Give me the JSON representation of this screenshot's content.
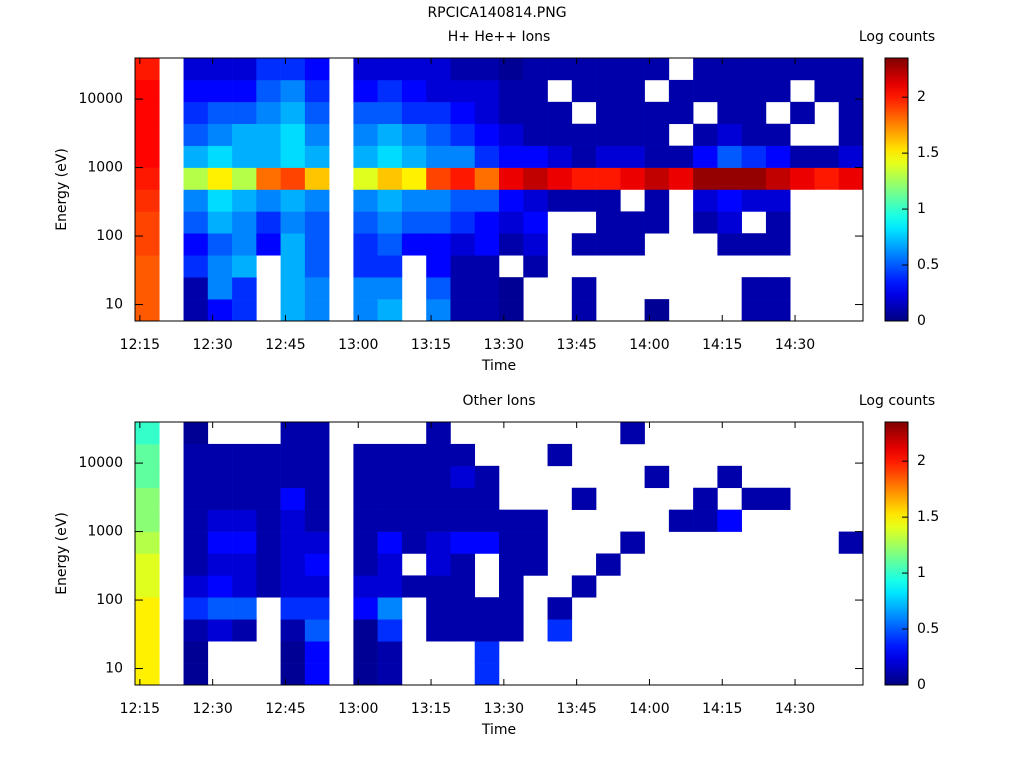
{
  "page_title": "RPCICA140814.PNG",
  "chart_data": [
    {
      "type": "heatmap",
      "title": "H+ He++ Ions",
      "xlabel": "Time",
      "ylabel": "Energy (eV)",
      "colorbar_label": "Log counts",
      "colormap": "jet",
      "log_y": true,
      "x": [
        734,
        739,
        744,
        749,
        754,
        759,
        764,
        769,
        774,
        779,
        784,
        789,
        794,
        799,
        804,
        809,
        814,
        819,
        824,
        829,
        834,
        839,
        844,
        849,
        854,
        859,
        864,
        869,
        874,
        879,
        884
      ],
      "y": [
        5.75,
        12.0,
        25.1,
        52.5,
        110,
        229,
        479,
        1000,
        2089,
        4365,
        9120,
        19055,
        39811
      ],
      "z": [
        [
          1.85,
          1.85,
          1.85,
          1.9,
          1.9,
          1.95,
          2.0,
          2.05,
          2.05,
          2.05,
          2.05,
          2.0
        ],
        [
          null,
          null,
          null,
          null,
          null,
          null,
          null,
          null,
          null,
          null,
          null,
          null
        ],
        [
          0.1,
          0.1,
          0.4,
          0.3,
          0.5,
          0.6,
          1.3,
          0.7,
          0.5,
          0.4,
          0.3,
          0.2
        ],
        [
          0.3,
          0.6,
          0.6,
          0.5,
          0.7,
          0.8,
          1.5,
          0.8,
          0.6,
          0.5,
          0.3,
          0.2
        ],
        [
          0.4,
          0.4,
          0.7,
          0.6,
          0.6,
          0.7,
          1.3,
          0.7,
          0.7,
          0.5,
          0.3,
          0.2
        ],
        [
          null,
          null,
          null,
          0.3,
          0.4,
          0.6,
          1.8,
          0.7,
          0.7,
          0.6,
          0.5,
          0.4
        ],
        [
          0.7,
          0.7,
          0.7,
          0.7,
          0.6,
          0.7,
          1.9,
          0.8,
          0.8,
          0.7,
          0.6,
          0.4
        ],
        [
          0.6,
          0.6,
          0.5,
          0.5,
          0.5,
          0.6,
          1.6,
          0.7,
          0.6,
          0.5,
          0.4,
          0.3
        ],
        [
          null,
          null,
          null,
          null,
          null,
          null,
          null,
          null,
          null,
          null,
          null,
          null
        ],
        [
          0.6,
          0.6,
          0.4,
          0.4,
          0.5,
          0.6,
          1.4,
          0.7,
          0.6,
          0.5,
          0.3,
          0.2
        ],
        [
          0.7,
          0.6,
          0.4,
          0.5,
          0.6,
          0.7,
          1.6,
          0.8,
          0.7,
          0.5,
          0.4,
          0.2
        ],
        [
          null,
          null,
          null,
          0.3,
          0.5,
          0.6,
          1.5,
          0.7,
          0.6,
          0.4,
          0.3,
          0.2
        ],
        [
          0.6,
          0.5,
          0.3,
          0.3,
          0.5,
          0.6,
          1.9,
          0.6,
          0.5,
          0.4,
          0.2,
          0.2
        ],
        [
          0.1,
          0.1,
          0.1,
          0.2,
          0.4,
          0.5,
          2.0,
          0.6,
          0.4,
          0.3,
          0.2,
          0.1
        ],
        [
          0.1,
          0.1,
          0.1,
          0.3,
          0.3,
          0.5,
          1.8,
          0.4,
          0.3,
          0.2,
          0.2,
          0.1
        ],
        [
          0.05,
          0.05,
          null,
          0.1,
          0.2,
          0.3,
          2.1,
          0.3,
          0.2,
          0.1,
          0.1,
          0.05
        ],
        [
          null,
          null,
          0.1,
          0.2,
          0.3,
          0.2,
          2.2,
          0.3,
          0.1,
          0.1,
          0.1,
          0.1
        ],
        [
          null,
          null,
          null,
          null,
          null,
          0.1,
          2.1,
          0.2,
          0.1,
          0.1,
          null,
          0.1
        ],
        [
          0.1,
          0.1,
          null,
          0.1,
          null,
          0.1,
          2.0,
          0.1,
          0.1,
          null,
          0.1,
          0.1
        ],
        [
          null,
          null,
          null,
          0.1,
          0.1,
          0.1,
          2.0,
          0.2,
          0.1,
          0.1,
          0.1,
          0.1
        ],
        [
          null,
          null,
          null,
          0.1,
          0.1,
          null,
          2.1,
          0.2,
          0.1,
          0.1,
          0.1,
          0.1
        ],
        [
          0.05,
          null,
          null,
          null,
          0.1,
          0.1,
          2.2,
          0.1,
          0.1,
          0.1,
          null,
          0.1
        ],
        [
          null,
          null,
          null,
          null,
          null,
          null,
          2.1,
          0.1,
          null,
          0.1,
          0.1,
          null
        ],
        [
          null,
          null,
          null,
          null,
          0.1,
          0.2,
          2.3,
          0.3,
          0.1,
          null,
          0.1,
          0.1
        ],
        [
          null,
          null,
          null,
          0.1,
          0.2,
          0.3,
          2.3,
          0.5,
          0.2,
          0.1,
          0.1,
          0.1
        ],
        [
          0.1,
          0.1,
          null,
          0.1,
          null,
          0.2,
          2.3,
          0.4,
          0.1,
          0.1,
          0.1,
          0.1
        ],
        [
          0.1,
          0.1,
          null,
          0.1,
          0.1,
          0.2,
          2.2,
          0.3,
          0.1,
          null,
          0.1,
          0.1
        ],
        [
          null,
          null,
          null,
          null,
          null,
          null,
          2.1,
          0.1,
          null,
          0.1,
          null,
          0.1
        ],
        [
          null,
          null,
          null,
          null,
          null,
          null,
          2.0,
          0.1,
          null,
          null,
          0.1,
          0.1
        ],
        [
          null,
          null,
          null,
          null,
          null,
          null,
          2.1,
          0.2,
          0.1,
          0.1,
          0.1,
          0.1
        ]
      ],
      "xlim": [
        734,
        884
      ],
      "xticks": [
        {
          "value": 735,
          "label": "12:15"
        },
        {
          "value": 750,
          "label": "12:30"
        },
        {
          "value": 765,
          "label": "12:45"
        },
        {
          "value": 780,
          "label": "13:00"
        },
        {
          "value": 795,
          "label": "13:15"
        },
        {
          "value": 810,
          "label": "13:30"
        },
        {
          "value": 825,
          "label": "13:45"
        },
        {
          "value": 840,
          "label": "14:00"
        },
        {
          "value": 855,
          "label": "14:15"
        },
        {
          "value": 870,
          "label": "14:30"
        }
      ],
      "ylim": [
        5.75,
        39811
      ],
      "yticks": [
        10,
        100,
        1000,
        10000
      ],
      "zlim": [
        0,
        2.35
      ],
      "zticks": [
        0,
        0.5,
        1,
        1.5,
        2
      ]
    },
    {
      "type": "heatmap",
      "title": "Other Ions",
      "xlabel": "Time",
      "ylabel": "Energy (eV)",
      "colorbar_label": "Log counts",
      "colormap": "jet",
      "log_y": true,
      "x": [
        734,
        739,
        744,
        749,
        754,
        759,
        764,
        769,
        774,
        779,
        784,
        789,
        794,
        799,
        804,
        809,
        814,
        819,
        824,
        829,
        834,
        839,
        844,
        849,
        854,
        859,
        864,
        869,
        874,
        879,
        884
      ],
      "y": [
        5.75,
        12.0,
        25.1,
        52.5,
        110,
        229,
        479,
        1000,
        2089,
        4365,
        9120,
        19055,
        39811
      ],
      "z": [
        [
          1.5,
          1.5,
          1.5,
          1.5,
          1.4,
          1.4,
          1.3,
          1.2,
          1.2,
          1.1,
          1.1,
          1.0
        ],
        [
          null,
          null,
          null,
          null,
          null,
          null,
          null,
          null,
          null,
          null,
          null,
          null
        ],
        [
          0.05,
          0.05,
          0.1,
          0.4,
          0.2,
          0.1,
          0.1,
          0.1,
          0.1,
          0.1,
          0.1,
          0.05
        ],
        [
          null,
          null,
          0.2,
          0.5,
          0.3,
          0.2,
          0.3,
          0.2,
          0.1,
          0.1,
          0.1,
          null
        ],
        [
          null,
          null,
          0.1,
          0.5,
          0.2,
          0.2,
          0.3,
          0.2,
          0.1,
          0.1,
          0.1,
          null
        ],
        [
          null,
          null,
          null,
          null,
          0.1,
          0.1,
          0.1,
          0.1,
          0.1,
          0.1,
          0.1,
          null
        ],
        [
          0.05,
          0.05,
          0.1,
          0.4,
          0.2,
          0.2,
          0.2,
          0.2,
          0.3,
          0.1,
          0.1,
          0.1
        ],
        [
          0.3,
          0.3,
          0.5,
          0.4,
          0.2,
          0.3,
          0.2,
          0.1,
          0.1,
          0.1,
          0.1,
          0.1
        ],
        [
          null,
          null,
          null,
          null,
          null,
          null,
          null,
          null,
          null,
          null,
          null,
          null
        ],
        [
          0.05,
          0.05,
          0.05,
          0.3,
          0.2,
          0.1,
          0.1,
          0.1,
          0.1,
          0.1,
          0.1,
          null
        ],
        [
          0.1,
          0.1,
          0.4,
          0.6,
          0.2,
          0.2,
          0.3,
          0.1,
          0.1,
          0.1,
          0.1,
          null
        ],
        [
          null,
          null,
          null,
          null,
          0.1,
          null,
          0.1,
          0.1,
          0.1,
          0.1,
          0.1,
          null
        ],
        [
          null,
          null,
          0.1,
          0.1,
          0.1,
          0.2,
          0.2,
          0.1,
          0.1,
          0.1,
          0.1,
          0.1
        ],
        [
          null,
          null,
          0.1,
          0.1,
          0.1,
          0.1,
          0.3,
          0.1,
          0.1,
          0.2,
          0.1,
          null
        ],
        [
          0.4,
          0.4,
          0.1,
          0.1,
          null,
          null,
          0.3,
          0.1,
          0.1,
          0.1,
          null,
          null
        ],
        [
          null,
          null,
          0.1,
          0.1,
          0.1,
          0.1,
          0.1,
          0.1,
          null,
          null,
          null,
          null
        ],
        [
          null,
          null,
          null,
          null,
          null,
          0.1,
          0.1,
          0.1,
          null,
          null,
          null,
          null
        ],
        [
          null,
          null,
          0.4,
          0.1,
          null,
          null,
          null,
          null,
          null,
          null,
          0.1,
          null
        ],
        [
          null,
          null,
          null,
          null,
          0.1,
          null,
          null,
          null,
          0.1,
          null,
          null,
          null
        ],
        [
          null,
          null,
          null,
          null,
          null,
          0.1,
          null,
          null,
          null,
          null,
          null,
          null
        ],
        [
          null,
          null,
          null,
          null,
          null,
          null,
          0.1,
          null,
          null,
          null,
          null,
          0.1
        ],
        [
          null,
          null,
          null,
          null,
          null,
          null,
          null,
          null,
          null,
          0.1,
          null,
          null
        ],
        [
          null,
          null,
          null,
          null,
          null,
          null,
          null,
          0.1,
          null,
          null,
          null,
          null
        ],
        [
          null,
          null,
          null,
          null,
          null,
          null,
          null,
          0.1,
          0.1,
          null,
          null,
          null
        ],
        [
          null,
          null,
          null,
          null,
          null,
          null,
          null,
          0.3,
          null,
          0.1,
          null,
          null
        ],
        [
          null,
          null,
          null,
          null,
          null,
          null,
          null,
          null,
          0.1,
          null,
          null,
          null
        ],
        [
          null,
          null,
          null,
          null,
          null,
          null,
          null,
          null,
          0.1,
          null,
          null,
          null
        ],
        [
          null,
          null,
          null,
          null,
          null,
          null,
          null,
          null,
          null,
          null,
          null,
          null
        ],
        [
          null,
          null,
          null,
          null,
          null,
          null,
          null,
          null,
          null,
          null,
          null,
          null
        ],
        [
          null,
          null,
          null,
          null,
          null,
          null,
          0.1,
          null,
          null,
          null,
          null,
          null
        ]
      ],
      "xlim": [
        734,
        884
      ],
      "xticks": [
        {
          "value": 735,
          "label": "12:15"
        },
        {
          "value": 750,
          "label": "12:30"
        },
        {
          "value": 765,
          "label": "12:45"
        },
        {
          "value": 780,
          "label": "13:00"
        },
        {
          "value": 795,
          "label": "13:15"
        },
        {
          "value": 810,
          "label": "13:30"
        },
        {
          "value": 825,
          "label": "13:45"
        },
        {
          "value": 840,
          "label": "14:00"
        },
        {
          "value": 855,
          "label": "14:15"
        },
        {
          "value": 870,
          "label": "14:30"
        }
      ],
      "ylim": [
        5.75,
        39811
      ],
      "yticks": [
        10,
        100,
        1000,
        10000
      ],
      "zlim": [
        0,
        2.35
      ],
      "zticks": [
        0,
        0.5,
        1,
        1.5,
        2
      ]
    }
  ]
}
